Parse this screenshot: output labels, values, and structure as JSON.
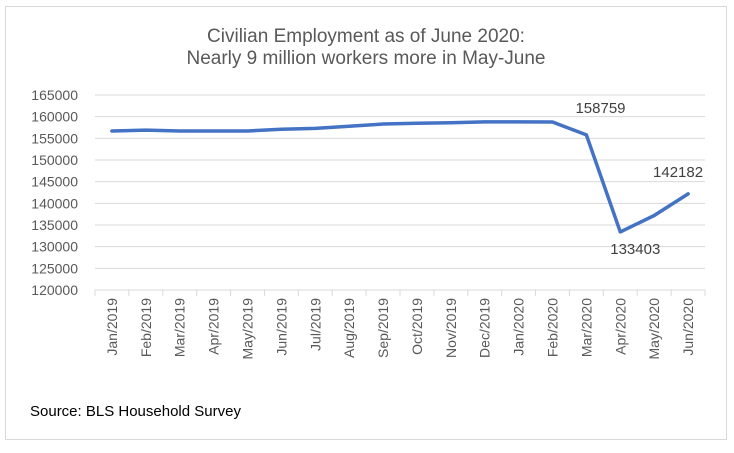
{
  "chart_data": {
    "type": "line",
    "title": "Civilian Employment as of June 2020:",
    "subtitle": "Nearly 9 million workers more in May-June",
    "xlabel": "",
    "ylabel": "",
    "ylim": [
      120000,
      165000
    ],
    "yticks": [
      165000,
      160000,
      155000,
      150000,
      145000,
      140000,
      135000,
      130000,
      125000,
      120000
    ],
    "grid": true,
    "line_color": "#4472c4",
    "categories": [
      "Jan/2019",
      "Feb/2019",
      "Mar/2019",
      "Apr/2019",
      "May/2019",
      "Jun/2019",
      "Jul/2019",
      "Aug/2019",
      "Sep/2019",
      "Oct/2019",
      "Nov/2019",
      "Dec/2019",
      "Jan/2020",
      "Feb/2020",
      "Mar/2020",
      "Apr/2020",
      "May/2020",
      "Jun/2020"
    ],
    "values": [
      156700,
      156900,
      156700,
      156700,
      156700,
      157100,
      157300,
      157800,
      158300,
      158500,
      158600,
      158800,
      158800,
      158759,
      155800,
      133403,
      137200,
      142182
    ],
    "data_labels": [
      {
        "category": "Feb/2020",
        "text": "158759"
      },
      {
        "category": "Apr/2020",
        "text": "133403"
      },
      {
        "category": "Jun/2020",
        "text": "142182"
      }
    ],
    "source": "Source: BLS Household Survey"
  }
}
